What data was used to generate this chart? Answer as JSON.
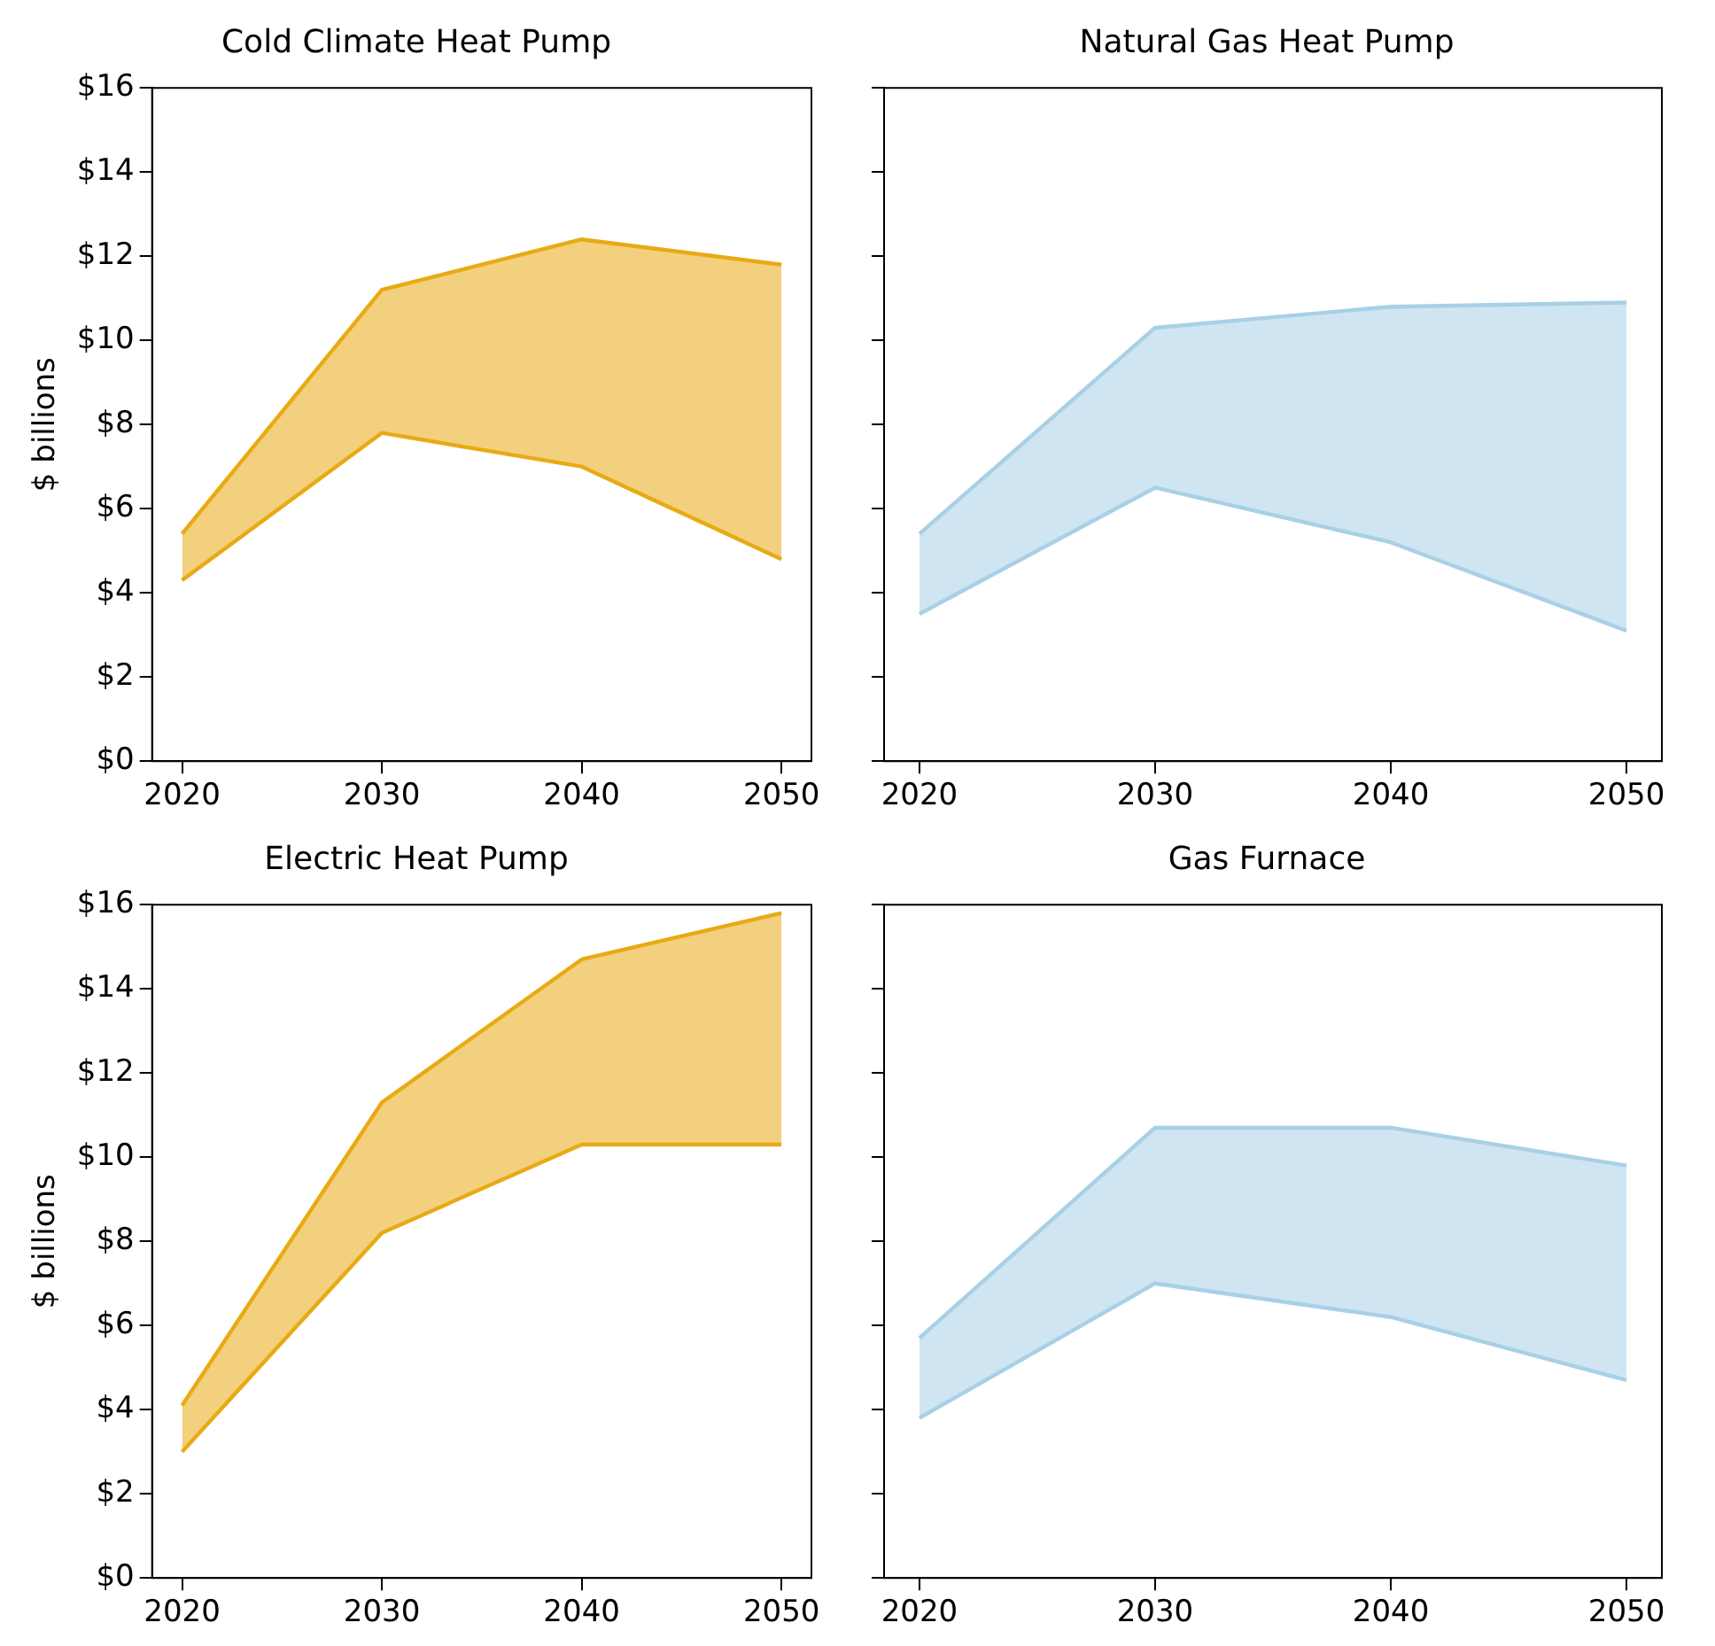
{
  "chart_data": [
    {
      "type": "area",
      "title": "Cold Climate Heat Pump",
      "ylabel": "$ billions",
      "x": [
        2020,
        2030,
        2040,
        2050
      ],
      "xlim": [
        2018.5,
        2051.5
      ],
      "xticks": [
        2020,
        2030,
        2040,
        2050
      ],
      "ylim": [
        0,
        16
      ],
      "yticks": [
        {
          "value": 0,
          "label": "$0"
        },
        {
          "value": 2,
          "label": "$2"
        },
        {
          "value": 4,
          "label": "$4"
        },
        {
          "value": 6,
          "label": "$6"
        },
        {
          "value": 8,
          "label": "$8"
        },
        {
          "value": 10,
          "label": "$10"
        },
        {
          "value": 12,
          "label": "$12"
        },
        {
          "value": 14,
          "label": "$14"
        },
        {
          "value": 16,
          "label": "$16"
        }
      ],
      "grid": false,
      "legend": false,
      "series": [
        {
          "type": "line",
          "color": "#e8aa14",
          "values": [
            4.3,
            7.8,
            7.0,
            4.8
          ]
        },
        {
          "color": "#e8aa14",
          "values": [
            5.4,
            11.2,
            12.4,
            11.8
          ]
        }
      ]
    },
    {
      "type": "area",
      "title": "Natural Gas Heat Pump",
      "x": [
        2020,
        2030,
        2040,
        2050
      ],
      "xlim": [
        2018.5,
        2051.5
      ],
      "xticks": [
        2020,
        2030,
        2040,
        2050
      ],
      "ylim": [
        0,
        16
      ],
      "yticks": [
        {
          "value": 0,
          "label": null
        },
        {
          "value": 2,
          "label": null
        },
        {
          "value": 4,
          "label": null
        },
        {
          "value": 6,
          "label": null
        },
        {
          "value": 8,
          "label": null
        },
        {
          "value": 10,
          "label": null
        },
        {
          "value": 12,
          "label": null
        },
        {
          "value": 14,
          "label": null
        },
        {
          "value": 16,
          "label": null
        }
      ],
      "tick_labels": "x",
      "grid": false,
      "legend": false,
      "series": [
        {
          "type": "line",
          "color": "#a8d0e6",
          "values": [
            3.5,
            6.5,
            5.2,
            3.1
          ]
        },
        {
          "color": "#a8d0e6",
          "values": [
            5.4,
            10.3,
            10.8,
            10.9
          ]
        }
      ]
    },
    {
      "type": "area",
      "title": "Electric Heat Pump",
      "ylabel": "$ billions",
      "x": [
        2020,
        2030,
        2040,
        2050
      ],
      "xlim": [
        2018.5,
        2051.5
      ],
      "xticks": [
        2020,
        2030,
        2040,
        2050
      ],
      "ylim": [
        0,
        16
      ],
      "yticks": [
        {
          "value": 0,
          "label": "$0"
        },
        {
          "value": 2,
          "label": "$2"
        },
        {
          "value": 4,
          "label": "$4"
        },
        {
          "value": 6,
          "label": "$6"
        },
        {
          "value": 8,
          "label": "$8"
        },
        {
          "value": 10,
          "label": "$10"
        },
        {
          "value": 12,
          "label": "$12"
        },
        {
          "value": 14,
          "label": "$14"
        },
        {
          "value": 16,
          "label": "$16"
        }
      ],
      "grid": false,
      "legend": false,
      "series": [
        {
          "type": "line",
          "color": "#e8aa14",
          "values": [
            3.0,
            8.2,
            10.3,
            10.3
          ]
        },
        {
          "color": "#e8aa14",
          "values": [
            4.1,
            11.3,
            14.7,
            15.8
          ]
        }
      ]
    },
    {
      "type": "area",
      "title": "Gas Furnace",
      "x": [
        2020,
        2030,
        2040,
        2050
      ],
      "xlim": [
        2018.5,
        2051.5
      ],
      "xticks": [
        2020,
        2030,
        2040,
        2050
      ],
      "ylim": [
        0,
        16
      ],
      "yticks": [
        {
          "value": 0,
          "label": null
        },
        {
          "value": 2,
          "label": null
        },
        {
          "value": 4,
          "label": null
        },
        {
          "value": 6,
          "label": null
        },
        {
          "value": 8,
          "label": null
        },
        {
          "value": 10,
          "label": null
        },
        {
          "value": 12,
          "label": null
        },
        {
          "value": 14,
          "label": null
        },
        {
          "value": 16,
          "label": null
        }
      ],
      "tick_labels": "x",
      "grid": false,
      "legend": false,
      "series": [
        {
          "type": "line",
          "color": "#a8d0e6",
          "values": [
            3.8,
            7.0,
            6.2,
            4.7
          ]
        },
        {
          "color": "#a8d0e6",
          "values": [
            5.7,
            10.7,
            10.7,
            9.8
          ]
        }
      ]
    }
  ]
}
